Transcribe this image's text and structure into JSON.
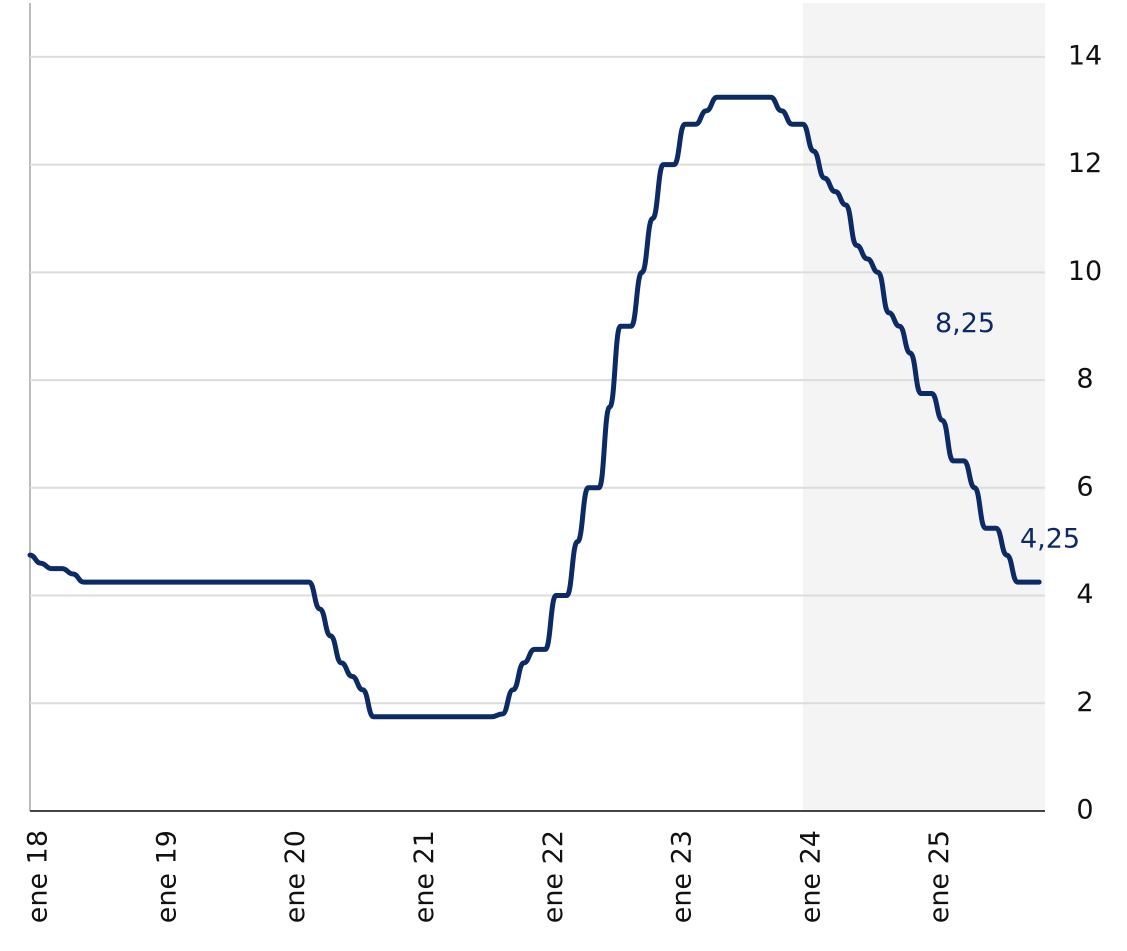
{
  "chart_data": {
    "type": "line",
    "categories": [
      "ene 18",
      null,
      null,
      null,
      null,
      null,
      null,
      null,
      null,
      null,
      null,
      null,
      "ene 19",
      null,
      null,
      null,
      null,
      null,
      null,
      null,
      null,
      null,
      null,
      null,
      "ene 20",
      null,
      null,
      null,
      null,
      null,
      null,
      null,
      null,
      null,
      null,
      null,
      "ene 21",
      null,
      null,
      null,
      null,
      null,
      null,
      null,
      null,
      null,
      null,
      null,
      "ene 22",
      null,
      null,
      null,
      null,
      null,
      null,
      null,
      null,
      null,
      null,
      null,
      "ene 23",
      null,
      null,
      null,
      null,
      null,
      null,
      null,
      null,
      null,
      null,
      null,
      "ene 24",
      null,
      null,
      null,
      null,
      null,
      null,
      null,
      null,
      null,
      null,
      null,
      "ene 25",
      null,
      null,
      null,
      null,
      null,
      null,
      null,
      null,
      null,
      null
    ],
    "series": [
      {
        "color": "#0b2a66",
        "values": [
          4.75,
          4.6,
          4.5,
          4.5,
          4.4,
          4.25,
          4.25,
          4.25,
          4.25,
          4.25,
          4.25,
          4.25,
          4.25,
          4.25,
          4.25,
          4.25,
          4.25,
          4.25,
          4.25,
          4.25,
          4.25,
          4.25,
          4.25,
          4.25,
          4.25,
          4.25,
          4.25,
          3.75,
          3.25,
          2.75,
          2.5,
          2.25,
          1.75,
          1.75,
          1.75,
          1.75,
          1.75,
          1.75,
          1.75,
          1.75,
          1.75,
          1.75,
          1.75,
          1.75,
          1.8,
          2.25,
          2.75,
          3.0,
          3.0,
          4.0,
          4.0,
          5.0,
          6.0,
          6.0,
          7.5,
          9.0,
          9.0,
          10.0,
          11.0,
          12.0,
          12.0,
          12.75,
          12.75,
          13.0,
          13.25,
          13.25,
          13.25,
          13.25,
          13.25,
          13.25,
          13.0,
          12.75,
          12.75,
          12.25,
          11.75,
          11.5,
          11.25,
          10.5,
          10.25,
          10.0,
          9.25,
          9.0,
          8.5,
          7.75,
          7.75,
          7.25,
          6.5,
          6.5,
          6.0,
          5.25,
          5.25,
          4.75,
          4.25,
          4.25,
          4.25
        ]
      }
    ],
    "annotations": [
      {
        "label": "8,25",
        "value": 8.25
      },
      {
        "label": "4,25",
        "value": 4.25
      }
    ],
    "ylim": [
      0,
      15
    ],
    "yticks": [
      0,
      2,
      4,
      6,
      8,
      10,
      12,
      14
    ],
    "grid": true
  }
}
